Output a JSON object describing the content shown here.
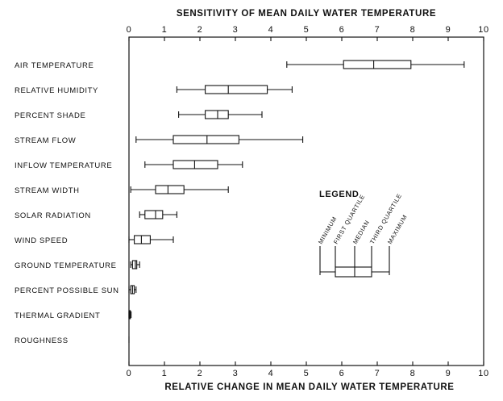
{
  "chart_data": {
    "type": "boxplot",
    "title": "SENSITIVITY OF MEAN DAILY WATER TEMPERATURE",
    "xlabel": "RELATIVE CHANGE IN MEAN DAILY WATER TEMPERATURE",
    "xlim": [
      0,
      10
    ],
    "ticks": [
      "0",
      "1",
      "2",
      "3",
      "4",
      "5",
      "6",
      "7",
      "8",
      "9",
      "10"
    ],
    "categories": [
      "AIR TEMPERATURE",
      "RELATIVE HUMIDITY",
      "PERCENT SHADE",
      "STREAM FLOW",
      "INFLOW TEMPERATURE",
      "STREAM WIDTH",
      "SOLAR RADIATION",
      "WIND SPEED",
      "GROUND TEMPERATURE",
      "PERCENT POSSIBLE SUN",
      "THERMAL GRADIENT",
      "ROUGHNESS"
    ],
    "boxes": [
      {
        "min": 4.45,
        "q1": 6.05,
        "median": 6.9,
        "q3": 7.95,
        "max": 9.45
      },
      {
        "min": 1.35,
        "q1": 2.15,
        "median": 2.8,
        "q3": 3.9,
        "max": 4.6
      },
      {
        "min": 1.4,
        "q1": 2.15,
        "median": 2.5,
        "q3": 2.8,
        "max": 3.75
      },
      {
        "min": 0.2,
        "q1": 1.25,
        "median": 2.2,
        "q3": 3.1,
        "max": 4.9
      },
      {
        "min": 0.45,
        "q1": 1.25,
        "median": 1.85,
        "q3": 2.5,
        "max": 3.2
      },
      {
        "min": 0.05,
        "q1": 0.75,
        "median": 1.1,
        "q3": 1.55,
        "max": 2.8
      },
      {
        "min": 0.3,
        "q1": 0.45,
        "median": 0.75,
        "q3": 0.95,
        "max": 1.35
      },
      {
        "min": 0.0,
        "q1": 0.15,
        "median": 0.35,
        "q3": 0.6,
        "max": 1.25
      },
      {
        "min": 0.05,
        "q1": 0.1,
        "median": 0.18,
        "q3": 0.22,
        "max": 0.3
      },
      {
        "min": 0.0,
        "q1": 0.05,
        "median": 0.1,
        "q3": 0.15,
        "max": 0.2
      },
      {
        "min": 0.0,
        "q1": 0.0,
        "median": 0.02,
        "q3": 0.04,
        "max": 0.06
      },
      {
        "min": 0.0,
        "q1": 0.0,
        "median": 0.0,
        "q3": 0.0,
        "max": 0.0
      }
    ],
    "grid": false,
    "legend": {
      "title": "LEGEND",
      "labels": [
        "MINIMUM",
        "FIRST QUARTILE",
        "MEDIAN",
        "THIRD QUARTILE",
        "MAXIMUM"
      ]
    }
  }
}
